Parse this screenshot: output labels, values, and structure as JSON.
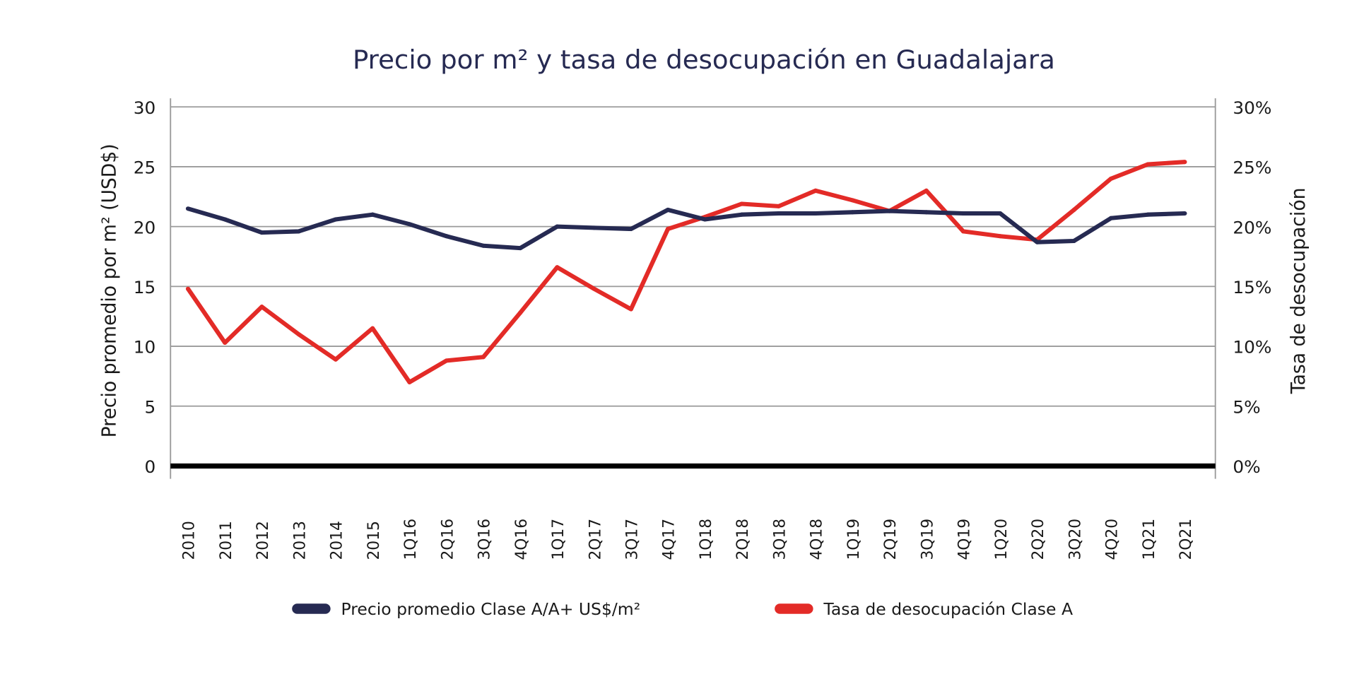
{
  "chart_data": {
    "type": "line",
    "title": "Precio por m² y tasa de desocupación en Guadalajara",
    "ylabel": "Precio promedio por m² (USD$)",
    "y2label": "Tasa de desocupación",
    "ylim": [
      0,
      30
    ],
    "y2lim": [
      0,
      30
    ],
    "yticks": [
      "0",
      "5",
      "10",
      "15",
      "20",
      "25",
      "30"
    ],
    "y2ticks": [
      "0%",
      "5%",
      "10%",
      "15%",
      "20%",
      "25%",
      "30%"
    ],
    "grid": true,
    "legend_position": "bottom",
    "categories": [
      "2010",
      "2011",
      "2012",
      "2013",
      "2014",
      "2015",
      "1Q16",
      "2Q16",
      "3Q16",
      "4Q16",
      "1Q17",
      "2Q17",
      "3Q17",
      "4Q17",
      "1Q18",
      "2Q18",
      "3Q18",
      "4Q18",
      "1Q19",
      "2Q19",
      "3Q19",
      "4Q19",
      "1Q20",
      "2Q20",
      "3Q20",
      "4Q20",
      "1Q21",
      "2Q21"
    ],
    "series": [
      {
        "name": "Precio promedio Clase A/A+ US$/m²",
        "axis": "left",
        "color": "#262a52",
        "values": [
          21.5,
          20.6,
          19.5,
          19.6,
          20.6,
          21.0,
          20.2,
          19.2,
          18.4,
          18.2,
          20.0,
          19.9,
          19.8,
          21.4,
          20.6,
          21.0,
          21.1,
          21.1,
          21.2,
          21.3,
          21.2,
          21.1,
          21.1,
          18.7,
          18.8,
          20.7,
          21.0,
          21.1
        ]
      },
      {
        "name": "Tasa de desocupación Clase A",
        "axis": "right",
        "unit": "%",
        "color": "#e32b27",
        "values": [
          14.8,
          10.3,
          13.3,
          11.0,
          8.9,
          11.5,
          7.0,
          8.8,
          9.1,
          12.8,
          16.6,
          14.8,
          13.1,
          19.8,
          20.8,
          21.9,
          21.7,
          23.0,
          22.2,
          21.3,
          23.0,
          19.6,
          19.2,
          18.9,
          21.4,
          24.0,
          25.2,
          25.4
        ]
      }
    ]
  }
}
